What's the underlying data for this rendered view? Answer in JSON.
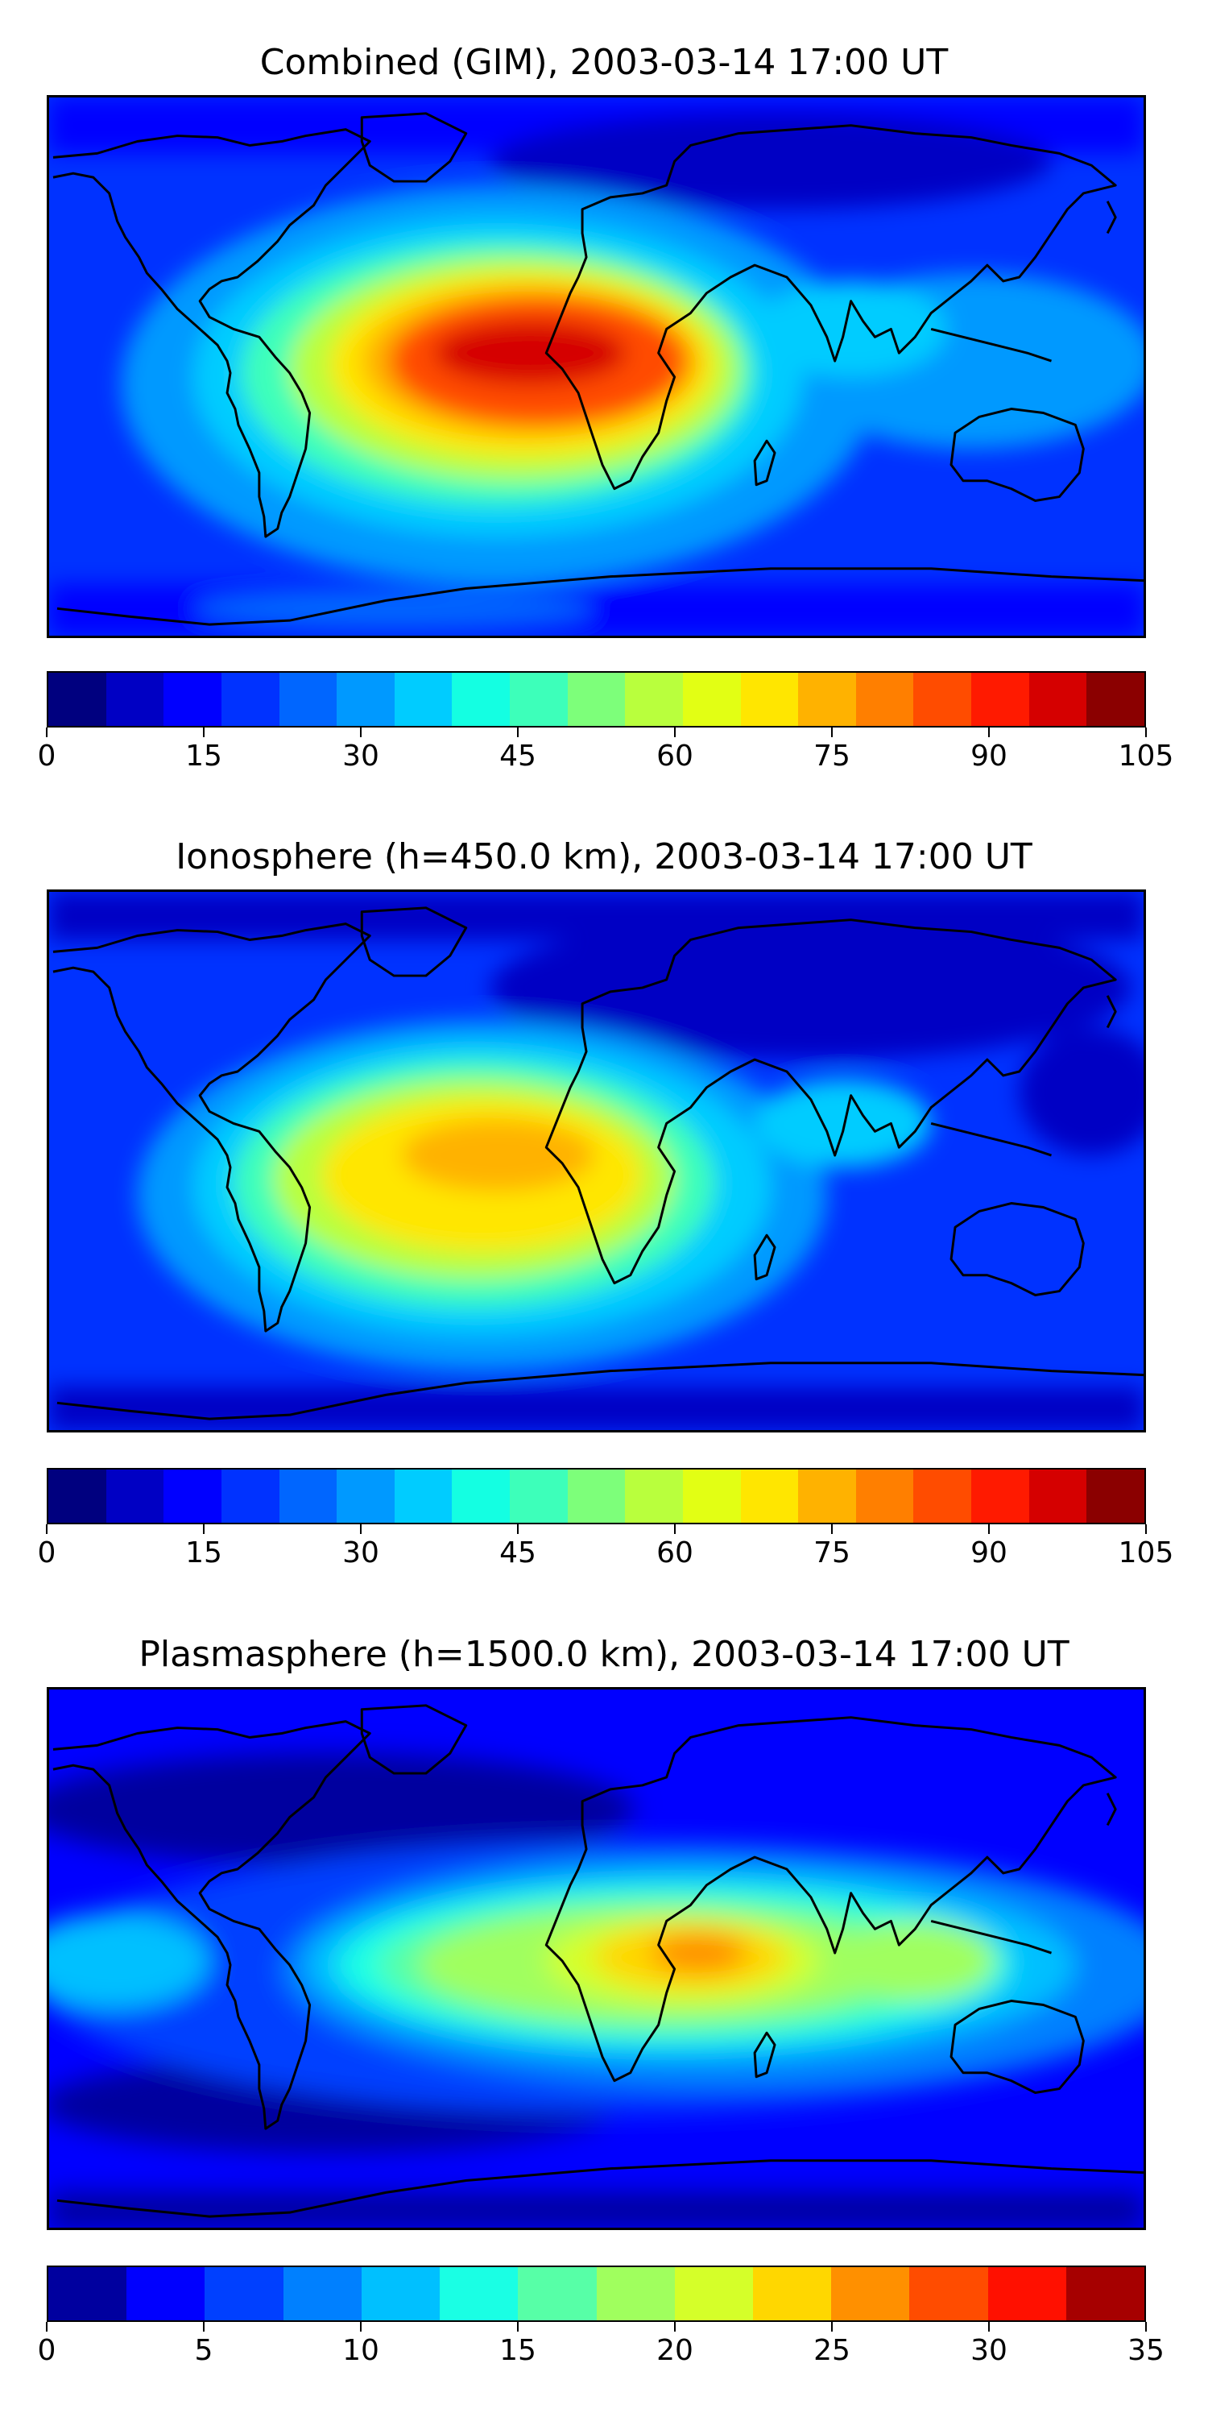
{
  "panels": [
    {
      "title": "Combined (GIM), 2003-03-14 17:00 UT",
      "colorbar": {
        "min": 0,
        "max": 105,
        "step": 5,
        "tick_labels": [
          "0",
          "15",
          "30",
          "45",
          "60",
          "75",
          "90",
          "105"
        ],
        "tick_values": [
          0,
          15,
          30,
          45,
          60,
          75,
          90,
          105
        ],
        "colors": [
          "#00007f",
          "#0000c4",
          "#0000ff",
          "#0032ff",
          "#0066ff",
          "#0099ff",
          "#00ccff",
          "#14ffe2",
          "#3dffba",
          "#7dff7a",
          "#b9ff3d",
          "#e2ff14",
          "#ffe600",
          "#ffb200",
          "#ff7f00",
          "#ff4c00",
          "#ff1a00",
          "#d50000",
          "#8b0000"
        ]
      }
    },
    {
      "title": "Ionosphere  (h=450.0 km), 2003-03-14 17:00 UT",
      "colorbar": {
        "min": 0,
        "max": 105,
        "step": 5,
        "tick_labels": [
          "0",
          "15",
          "30",
          "45",
          "60",
          "75",
          "90",
          "105"
        ],
        "tick_values": [
          0,
          15,
          30,
          45,
          60,
          75,
          90,
          105
        ],
        "colors": [
          "#00007f",
          "#0000c4",
          "#0000ff",
          "#0032ff",
          "#0066ff",
          "#0099ff",
          "#00ccff",
          "#14ffe2",
          "#3dffba",
          "#7dff7a",
          "#b9ff3d",
          "#e2ff14",
          "#ffe600",
          "#ffb200",
          "#ff7f00",
          "#ff4c00",
          "#ff1a00",
          "#d50000",
          "#8b0000"
        ]
      }
    },
    {
      "title": "Plasmasphere (h=1500.0 km), 2003-03-14 17:00 UT",
      "colorbar": {
        "min": 0,
        "max": 35,
        "step": 2.5,
        "tick_labels": [
          "0",
          "5",
          "10",
          "15",
          "20",
          "25",
          "30",
          "35"
        ],
        "tick_values": [
          0,
          5,
          10,
          15,
          20,
          25,
          30,
          35
        ],
        "colors": [
          "#00009f",
          "#0000ff",
          "#0040ff",
          "#0080ff",
          "#00c0ff",
          "#1affe4",
          "#57ffa7",
          "#a0ff5e",
          "#d5ff29",
          "#ffd700",
          "#ff9000",
          "#ff4c00",
          "#ff1000",
          "#a60000"
        ]
      }
    }
  ]
}
